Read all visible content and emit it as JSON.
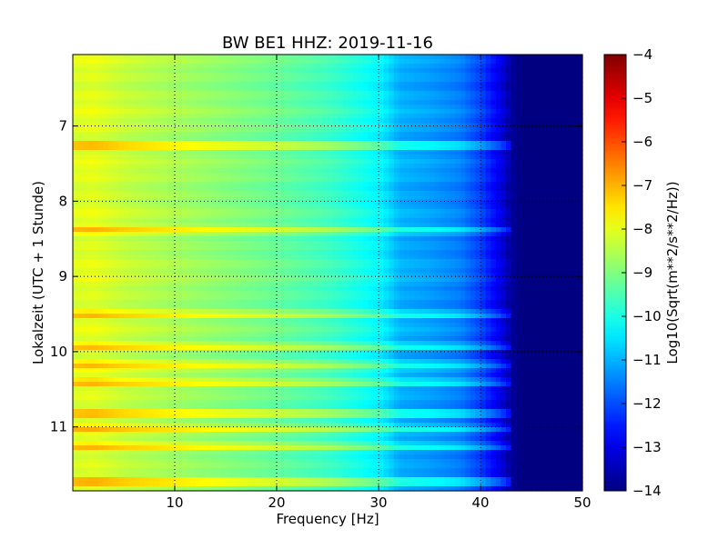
{
  "chart_data": {
    "type": "heatmap",
    "title": "BW BE1 HHZ: 2019-11-16",
    "xlabel": "Frequency [Hz]",
    "ylabel": "Lokalzeit (UTC + 1 Stunde)",
    "xlim": [
      0,
      50
    ],
    "ylim": [
      11.85,
      6.05
    ],
    "x_ticks": [
      10,
      20,
      30,
      40,
      50
    ],
    "y_ticks": [
      7,
      8,
      9,
      10,
      11
    ],
    "grid": true,
    "grid_style": "dotted",
    "colormap": "jet",
    "colorbar": {
      "label": "Log10(Sqrt(m**2/s**2/Hz))",
      "min": -14,
      "max": -4,
      "ticks": [
        -4,
        -5,
        -6,
        -7,
        -8,
        -9,
        -10,
        -11,
        -12,
        -13,
        -14
      ]
    },
    "spectral_profile_hz": [
      {
        "x": 0,
        "value": -8.1
      },
      {
        "x": 2,
        "value": -8.0
      },
      {
        "x": 5,
        "value": -8.3
      },
      {
        "x": 10,
        "value": -8.6
      },
      {
        "x": 15,
        "value": -8.9
      },
      {
        "x": 20,
        "value": -9.2
      },
      {
        "x": 25,
        "value": -9.6
      },
      {
        "x": 28,
        "value": -10.0
      },
      {
        "x": 30,
        "value": -10.3
      },
      {
        "x": 31,
        "value": -10.6
      },
      {
        "x": 32,
        "value": -11.0
      },
      {
        "x": 35,
        "value": -11.2
      },
      {
        "x": 38,
        "value": -11.5
      },
      {
        "x": 40,
        "value": -12.1
      },
      {
        "x": 42,
        "value": -13.0
      },
      {
        "x": 43,
        "value": -13.7
      },
      {
        "x": 44,
        "value": -14.0
      },
      {
        "x": 50,
        "value": -14.0
      }
    ],
    "strong_bands_hour": [
      7.26,
      8.39,
      9.5,
      9.93,
      10.19,
      10.41,
      10.82,
      11.01,
      11.26,
      11.73
    ]
  }
}
